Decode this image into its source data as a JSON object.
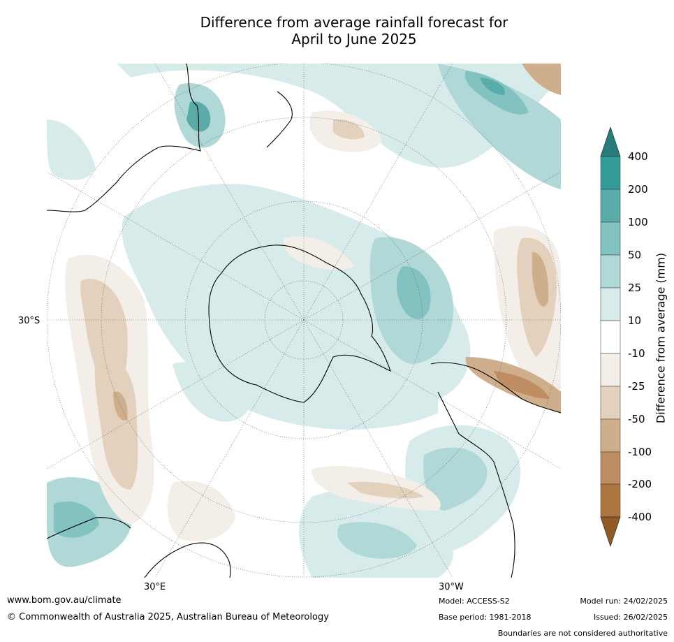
{
  "title_line1": "Difference from average rainfall forecast for",
  "title_line2": "April to June 2025",
  "map": {
    "lat_label": "30°S",
    "lon_label_left": "30°E",
    "lon_label_right": "30°W"
  },
  "colorbar": {
    "title": "Difference from average (mm)",
    "ticks": [
      "400",
      "200",
      "100",
      "50",
      "25",
      "10",
      "-10",
      "-25",
      "-50",
      "-100",
      "-200",
      "-400"
    ],
    "colors": {
      "c400": "#277d7b",
      "c200_400": "#339b98",
      "c100_200": "#5aacaa",
      "c50_100": "#82c3c1",
      "c25_50": "#afd8d6",
      "c10_25": "#d6ebea",
      "neutral": "#ffffff",
      "cm10_m25": "#f3eee8",
      "cm25_m50": "#e3d1bd",
      "cm50_m100": "#cfae8c",
      "cm100_m200": "#be8e62",
      "cm200_m400": "#ad7540",
      "cm400": "#915a25"
    }
  },
  "footer": {
    "website": "www.bom.gov.au/climate",
    "copyright": "© Commonwealth of Australia 2025, Australian Bureau of Meteorology",
    "model": "Model: ACCESS-S2",
    "base_period": "Base period: 1981-2018",
    "model_run": "Model run: 24/02/2025",
    "issued": "Issued: 26/02/2025",
    "disclaimer": "Boundaries are not considered authoritative"
  }
}
